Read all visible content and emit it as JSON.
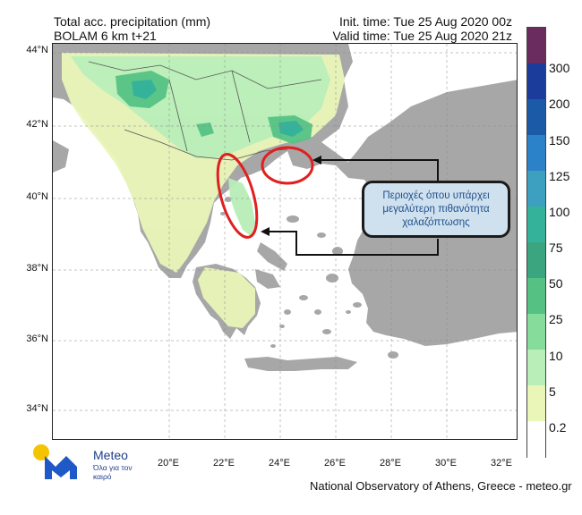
{
  "header": {
    "title": "Total acc. precipitation (mm)",
    "model": "BOLAM 6 km t+21",
    "init_time": "Init. time: Tue 25 Aug 2020 00z",
    "valid_time": "Valid time: Tue 25 Aug 2020 21z"
  },
  "map": {
    "lat_ticks": [
      "44°N",
      "42°N",
      "40°N",
      "38°N",
      "36°N",
      "34°N"
    ],
    "lon_ticks": [
      "20°E",
      "22°E",
      "24°E",
      "26°E",
      "28°E",
      "30°E",
      "32°E"
    ],
    "highlight_color": "#e02020",
    "callout_text": "Περιοχές όπου υπάρχει μεγαλύτερη πιθανότητα χαλαζόπτωσης"
  },
  "colorbar": {
    "labels": [
      "300",
      "200",
      "150",
      "125",
      "100",
      "75",
      "50",
      "25",
      "10",
      "5",
      "0.2"
    ],
    "colors": [
      "#6a2c5e",
      "#1c3c9b",
      "#1b5aa6",
      "#2c82c9",
      "#3ea0c0",
      "#35b39a",
      "#3aa57e",
      "#55c284",
      "#86dc9a",
      "#b9eeb8",
      "#e9f6b8",
      "#ffffff"
    ]
  },
  "footer": {
    "credit": "National Observatory of Athens, Greece - meteo.gr",
    "brand": "Meteo",
    "slogan": "Όλα για τον καιρό"
  },
  "colors": {
    "land": "#a7a7a7",
    "sea": "#ffffff",
    "light_precip": "#e9f6b8",
    "medium_precip": "#b9eeb8",
    "heavy_precip": "#55c284",
    "logo_yellow": "#f5c400",
    "logo_blue": "#1f58c7"
  }
}
